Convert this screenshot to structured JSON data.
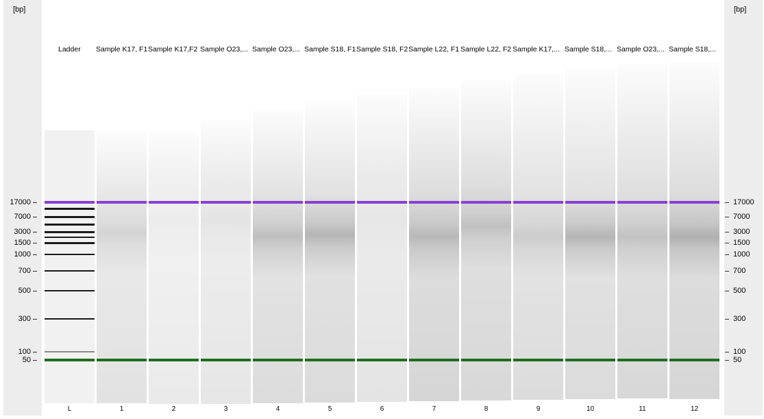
{
  "axis": {
    "unit": "[bp]",
    "ticks": [
      "17000",
      "7000",
      "3000",
      "1500",
      "1000",
      "700",
      "500",
      "300",
      "100",
      "50"
    ]
  },
  "lanes": [
    {
      "number": "L",
      "name": "Ladder"
    },
    {
      "number": "1",
      "name": "Sample K17, F1"
    },
    {
      "number": "2",
      "name": "Sample K17,F2"
    },
    {
      "number": "3",
      "name": "Sample O23,..."
    },
    {
      "number": "4",
      "name": "Sample O23,..."
    },
    {
      "number": "5",
      "name": "Sample S18, F1"
    },
    {
      "number": "6",
      "name": "Sample S18, F2"
    },
    {
      "number": "7",
      "name": "Sample L22, F1"
    },
    {
      "number": "8",
      "name": "Sample L22, F2"
    },
    {
      "number": "9",
      "name": "Sample K17,..."
    },
    {
      "number": "10",
      "name": "Sample S18,..."
    },
    {
      "number": "11",
      "name": "Sample O23,..."
    },
    {
      "number": "12",
      "name": "Sample S18,..."
    }
  ],
  "colors": {
    "upper_marker": "#8a3fd0",
    "lower_marker": "#1e6e1e",
    "ladder_band": "#1a1a1a",
    "axis_panel": "#ededed"
  }
}
